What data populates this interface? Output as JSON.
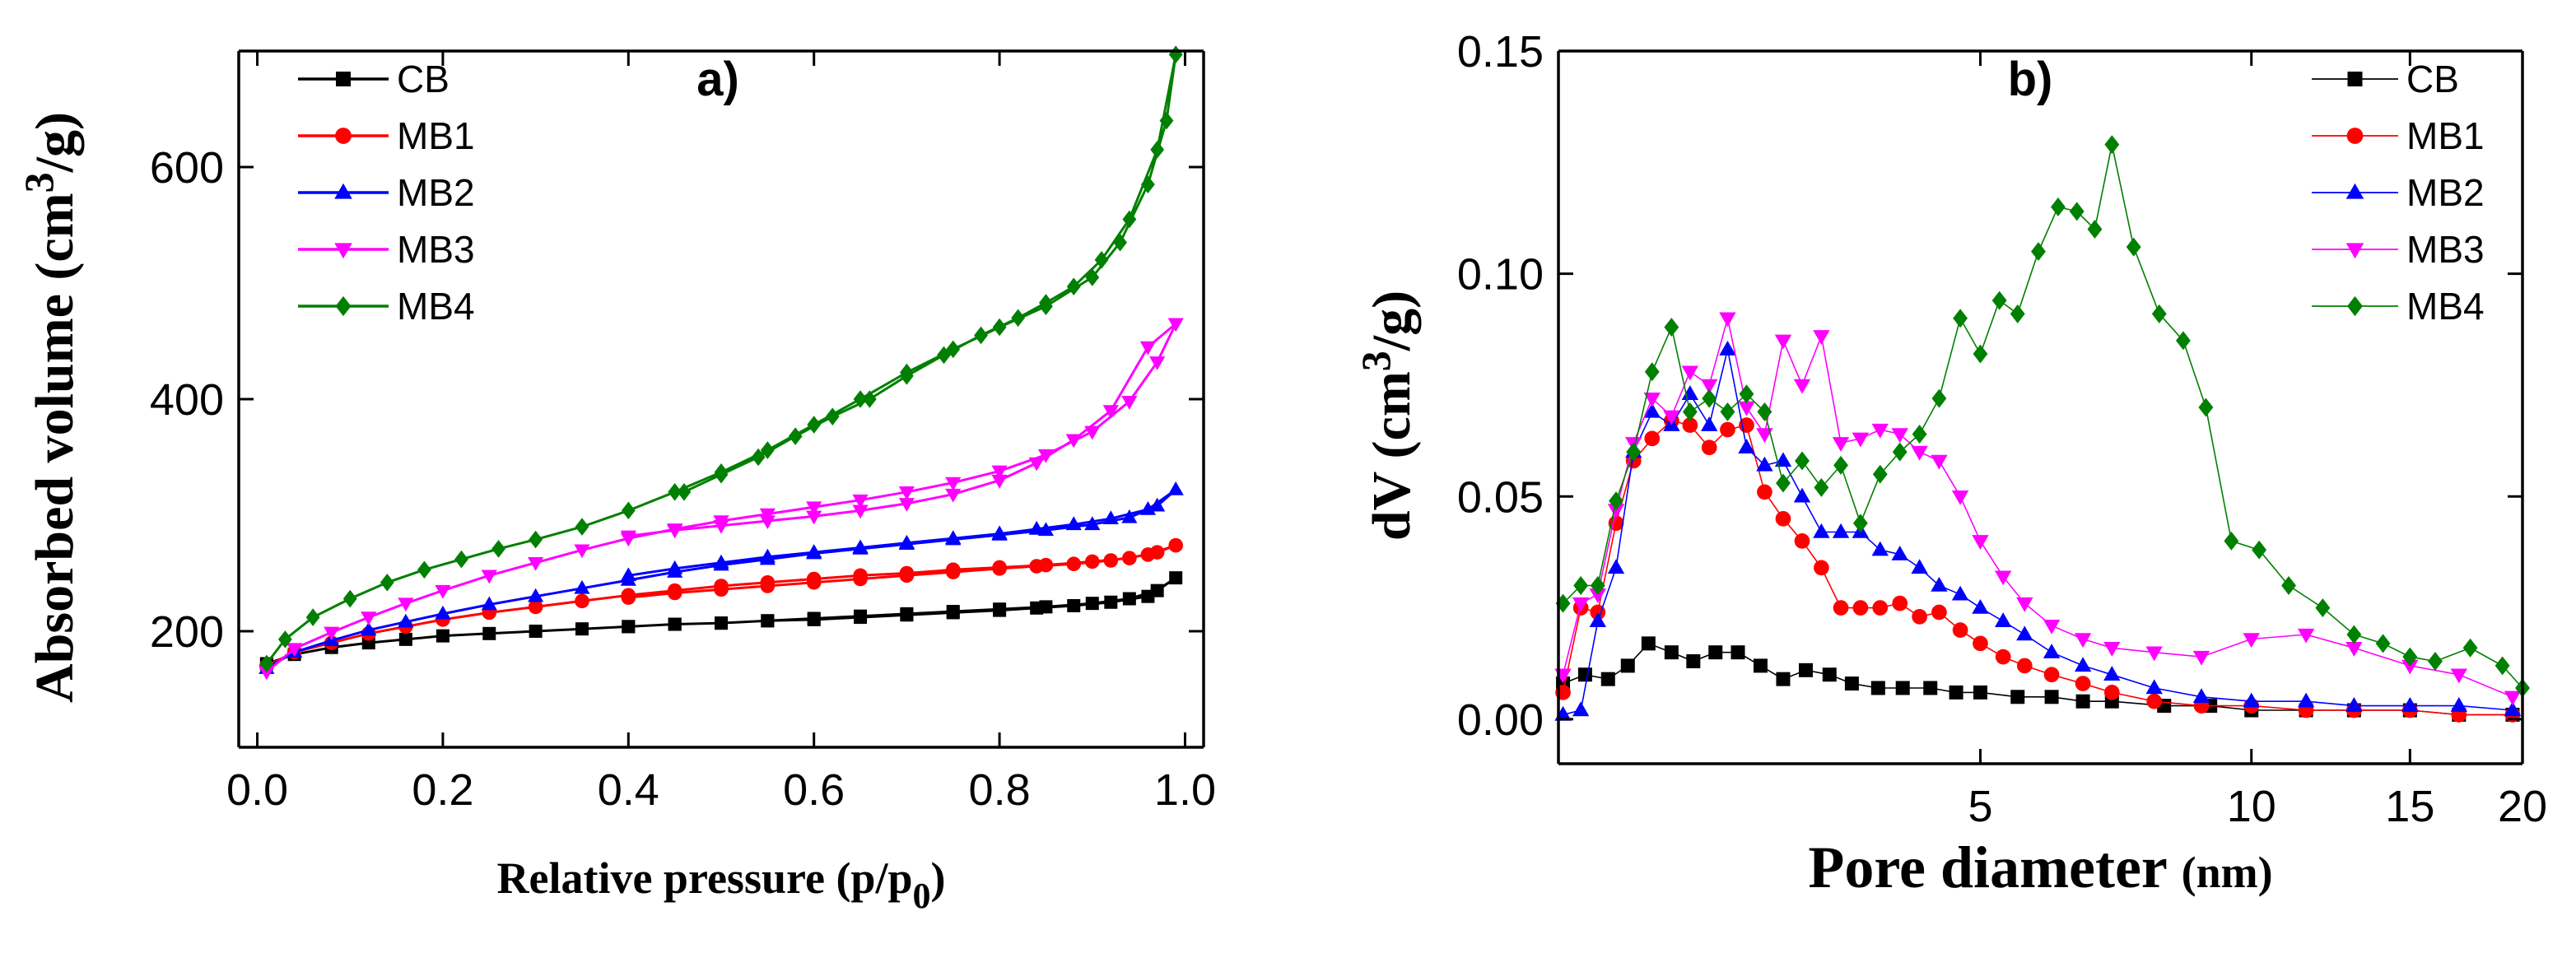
{
  "chart_data": [
    {
      "id": "a",
      "type": "line",
      "panel_label": "a)",
      "title": "",
      "xlabel": {
        "main": "Relative pressure (p/p",
        "sub": "0",
        "tail": ")"
      },
      "ylabel": {
        "main": "Absorbed volume (cm",
        "sup": "3",
        "tail": "/g)"
      },
      "xlim": [
        -0.02,
        1.02
      ],
      "ylim": [
        100,
        700
      ],
      "xticks": [
        0.0,
        0.2,
        0.4,
        0.6,
        0.8,
        1.0
      ],
      "xtick_labels": [
        "0.0",
        "0.2",
        "0.4",
        "0.6",
        "0.8",
        "1.0"
      ],
      "yticks": [
        200,
        400,
        600
      ],
      "ytick_labels": [
        "200",
        "400",
        "600"
      ],
      "legend_position": "top-left",
      "series": [
        {
          "name": "CB",
          "color": "#000000",
          "marker": "square",
          "x": [
            0.01,
            0.04,
            0.08,
            0.12,
            0.16,
            0.2,
            0.25,
            0.3,
            0.35,
            0.4,
            0.45,
            0.5,
            0.55,
            0.6,
            0.65,
            0.7,
            0.75,
            0.8,
            0.85,
            0.9,
            0.94,
            0.97,
            0.99,
            0.96,
            0.92,
            0.88,
            0.84,
            0.8,
            0.75,
            0.7,
            0.65,
            0.6,
            0.55,
            0.5,
            0.45,
            0.4
          ],
          "y": [
            172,
            180,
            186,
            190,
            193,
            196,
            198,
            200,
            202,
            204,
            206,
            207,
            209,
            211,
            213,
            215,
            217,
            219,
            221,
            224,
            228,
            235,
            246,
            230,
            225,
            222,
            220,
            218,
            216,
            214,
            212,
            210,
            209,
            207,
            206,
            204
          ]
        },
        {
          "name": "MB1",
          "color": "#ff0000",
          "marker": "circle",
          "x": [
            0.01,
            0.04,
            0.08,
            0.12,
            0.16,
            0.2,
            0.25,
            0.3,
            0.35,
            0.4,
            0.45,
            0.5,
            0.55,
            0.6,
            0.65,
            0.7,
            0.75,
            0.8,
            0.85,
            0.9,
            0.94,
            0.97,
            0.99,
            0.96,
            0.92,
            0.88,
            0.84,
            0.8,
            0.75,
            0.7,
            0.65,
            0.6,
            0.55,
            0.5,
            0.45,
            0.4
          ],
          "y": [
            170,
            182,
            190,
            198,
            204,
            210,
            216,
            221,
            226,
            231,
            235,
            239,
            242,
            245,
            248,
            250,
            253,
            255,
            257,
            260,
            263,
            268,
            274,
            266,
            261,
            258,
            256,
            254,
            251,
            248,
            245,
            242,
            239,
            236,
            233,
            229
          ]
        },
        {
          "name": "MB2",
          "color": "#0000ff",
          "marker": "triangle-up",
          "x": [
            0.01,
            0.04,
            0.08,
            0.12,
            0.16,
            0.2,
            0.25,
            0.3,
            0.35,
            0.4,
            0.45,
            0.5,
            0.55,
            0.6,
            0.65,
            0.7,
            0.75,
            0.8,
            0.85,
            0.9,
            0.94,
            0.97,
            0.99,
            0.96,
            0.92,
            0.88,
            0.84,
            0.8,
            0.75,
            0.7,
            0.65,
            0.6,
            0.55,
            0.5,
            0.45,
            0.4
          ],
          "y": [
            168,
            182,
            192,
            201,
            208,
            215,
            223,
            230,
            237,
            244,
            251,
            257,
            262,
            267,
            271,
            275,
            279,
            283,
            287,
            292,
            298,
            308,
            322,
            305,
            297,
            292,
            288,
            284,
            280,
            276,
            272,
            268,
            264,
            259,
            254,
            248
          ]
        },
        {
          "name": "MB3",
          "color": "#ff00ff",
          "marker": "triangle-down",
          "x": [
            0.01,
            0.04,
            0.08,
            0.12,
            0.16,
            0.2,
            0.25,
            0.3,
            0.35,
            0.4,
            0.45,
            0.5,
            0.55,
            0.6,
            0.65,
            0.7,
            0.75,
            0.8,
            0.85,
            0.9,
            0.94,
            0.97,
            0.99,
            0.96,
            0.92,
            0.88,
            0.84,
            0.8,
            0.75,
            0.7,
            0.65,
            0.6,
            0.55,
            0.5,
            0.45,
            0.4
          ],
          "y": [
            165,
            185,
            199,
            212,
            224,
            235,
            248,
            259,
            270,
            280,
            288,
            295,
            301,
            307,
            313,
            320,
            328,
            338,
            352,
            372,
            398,
            432,
            465,
            445,
            390,
            365,
            345,
            330,
            318,
            310,
            304,
            299,
            295,
            291,
            287,
            282
          ]
        },
        {
          "name": "MB4",
          "color": "#008000",
          "marker": "diamond",
          "x": [
            0.01,
            0.03,
            0.06,
            0.1,
            0.14,
            0.18,
            0.22,
            0.26,
            0.3,
            0.35,
            0.4,
            0.45,
            0.5,
            0.55,
            0.6,
            0.65,
            0.7,
            0.75,
            0.8,
            0.85,
            0.9,
            0.93,
            0.96,
            0.98,
            0.99,
            0.97,
            0.94,
            0.91,
            0.88,
            0.85,
            0.82,
            0.78,
            0.74,
            0.7,
            0.66,
            0.62,
            0.58,
            0.54,
            0.5,
            0.46
          ],
          "y": [
            172,
            193,
            212,
            228,
            242,
            253,
            262,
            271,
            279,
            290,
            304,
            320,
            337,
            356,
            378,
            400,
            423,
            443,
            462,
            480,
            505,
            535,
            585,
            640,
            697,
            615,
            555,
            520,
            497,
            483,
            470,
            455,
            438,
            420,
            400,
            385,
            368,
            350,
            335,
            320
          ]
        }
      ]
    },
    {
      "id": "b",
      "type": "line",
      "panel_label": "b)",
      "title": "",
      "xlabel": {
        "main": "Pore diameter ",
        "unit": "(nm)"
      },
      "ylabel": {
        "main": "dV (cm",
        "sup": "3",
        "tail": "/g)"
      },
      "xscale": "log",
      "xlim": [
        1.7,
        20
      ],
      "ylim": [
        -0.01,
        0.15
      ],
      "xticks": [
        5,
        10,
        15,
        20
      ],
      "xtick_labels": [
        "5",
        "10",
        "15",
        "20"
      ],
      "yticks": [
        0.0,
        0.05,
        0.1,
        0.15
      ],
      "ytick_labels": [
        "0.00",
        "0.05",
        "0.10",
        "0.15"
      ],
      "legend_position": "top-right",
      "series": [
        {
          "name": "CB",
          "color": "#000000",
          "marker": "square",
          "x": [
            1.72,
            1.82,
            1.93,
            2.03,
            2.14,
            2.27,
            2.4,
            2.54,
            2.69,
            2.85,
            3.02,
            3.2,
            3.4,
            3.6,
            3.85,
            4.1,
            4.4,
            4.7,
            5.0,
            5.5,
            6.0,
            6.5,
            7.0,
            8.0,
            9.0,
            10.0,
            11.5,
            13.0,
            15.0,
            17.0,
            19.5
          ],
          "y": [
            0.008,
            0.01,
            0.009,
            0.012,
            0.017,
            0.015,
            0.013,
            0.015,
            0.015,
            0.012,
            0.009,
            0.011,
            0.01,
            0.008,
            0.007,
            0.007,
            0.007,
            0.006,
            0.006,
            0.005,
            0.005,
            0.004,
            0.004,
            0.003,
            0.003,
            0.002,
            0.002,
            0.002,
            0.002,
            0.001,
            0.001
          ]
        },
        {
          "name": "MB1",
          "color": "#ff0000",
          "marker": "circle",
          "x": [
            1.72,
            1.8,
            1.88,
            1.97,
            2.06,
            2.16,
            2.27,
            2.38,
            2.5,
            2.62,
            2.75,
            2.88,
            3.02,
            3.17,
            3.33,
            3.5,
            3.68,
            3.87,
            4.07,
            4.28,
            4.5,
            4.75,
            5.0,
            5.3,
            5.6,
            6.0,
            6.5,
            7.0,
            7.8,
            8.8,
            10.0,
            11.5,
            13.0,
            15.0,
            17.0,
            19.5
          ],
          "y": [
            0.006,
            0.025,
            0.024,
            0.044,
            0.058,
            0.063,
            0.067,
            0.066,
            0.061,
            0.065,
            0.066,
            0.051,
            0.045,
            0.04,
            0.034,
            0.025,
            0.025,
            0.025,
            0.026,
            0.023,
            0.024,
            0.02,
            0.017,
            0.014,
            0.012,
            0.01,
            0.008,
            0.006,
            0.004,
            0.003,
            0.003,
            0.002,
            0.002,
            0.002,
            0.001,
            0.001
          ]
        },
        {
          "name": "MB2",
          "color": "#0000ff",
          "marker": "triangle-up",
          "x": [
            1.72,
            1.8,
            1.88,
            1.97,
            2.06,
            2.16,
            2.27,
            2.38,
            2.5,
            2.62,
            2.75,
            2.88,
            3.02,
            3.17,
            3.33,
            3.5,
            3.68,
            3.87,
            4.07,
            4.28,
            4.5,
            4.75,
            5.0,
            5.3,
            5.6,
            6.0,
            6.5,
            7.0,
            7.8,
            8.8,
            10.0,
            11.5,
            13.0,
            15.0,
            17.0,
            19.5
          ],
          "y": [
            0.001,
            0.002,
            0.022,
            0.034,
            0.06,
            0.069,
            0.066,
            0.073,
            0.066,
            0.083,
            0.061,
            0.057,
            0.058,
            0.05,
            0.042,
            0.042,
            0.042,
            0.038,
            0.037,
            0.034,
            0.03,
            0.028,
            0.025,
            0.022,
            0.019,
            0.015,
            0.012,
            0.01,
            0.007,
            0.005,
            0.004,
            0.004,
            0.003,
            0.003,
            0.003,
            0.002
          ]
        },
        {
          "name": "MB3",
          "color": "#ff00ff",
          "marker": "triangle-down",
          "x": [
            1.72,
            1.8,
            1.88,
            1.97,
            2.06,
            2.16,
            2.27,
            2.38,
            2.5,
            2.62,
            2.75,
            2.88,
            3.02,
            3.17,
            3.33,
            3.5,
            3.68,
            3.87,
            4.07,
            4.28,
            4.5,
            4.75,
            5.0,
            5.3,
            5.6,
            6.0,
            6.5,
            7.0,
            7.8,
            8.8,
            10.0,
            11.5,
            13.0,
            15.0,
            17.0,
            19.5
          ],
          "y": [
            0.01,
            0.026,
            0.028,
            0.047,
            0.062,
            0.072,
            0.068,
            0.078,
            0.075,
            0.09,
            0.07,
            0.064,
            0.085,
            0.075,
            0.086,
            0.062,
            0.063,
            0.065,
            0.064,
            0.06,
            0.058,
            0.05,
            0.04,
            0.032,
            0.026,
            0.021,
            0.018,
            0.016,
            0.015,
            0.014,
            0.018,
            0.019,
            0.016,
            0.012,
            0.01,
            0.005
          ]
        },
        {
          "name": "MB4",
          "color": "#008000",
          "marker": "diamond",
          "x": [
            1.72,
            1.8,
            1.88,
            1.97,
            2.06,
            2.16,
            2.27,
            2.38,
            2.5,
            2.62,
            2.75,
            2.88,
            3.02,
            3.17,
            3.33,
            3.5,
            3.68,
            3.87,
            4.07,
            4.28,
            4.5,
            4.75,
            5.0,
            5.25,
            5.5,
            5.8,
            6.1,
            6.4,
            6.7,
            7.0,
            7.4,
            7.9,
            8.4,
            8.9,
            9.5,
            10.2,
            11.0,
            12.0,
            13.0,
            14.0,
            15.0,
            16.0,
            17.5,
            19.0,
            20.0
          ],
          "y": [
            0.026,
            0.03,
            0.03,
            0.049,
            0.06,
            0.078,
            0.088,
            0.069,
            0.072,
            0.069,
            0.073,
            0.069,
            0.053,
            0.058,
            0.052,
            0.057,
            0.044,
            0.055,
            0.06,
            0.064,
            0.072,
            0.09,
            0.082,
            0.094,
            0.091,
            0.105,
            0.115,
            0.114,
            0.11,
            0.129,
            0.106,
            0.091,
            0.085,
            0.07,
            0.04,
            0.038,
            0.03,
            0.025,
            0.019,
            0.017,
            0.014,
            0.013,
            0.016,
            0.012,
            0.007
          ]
        }
      ]
    }
  ]
}
